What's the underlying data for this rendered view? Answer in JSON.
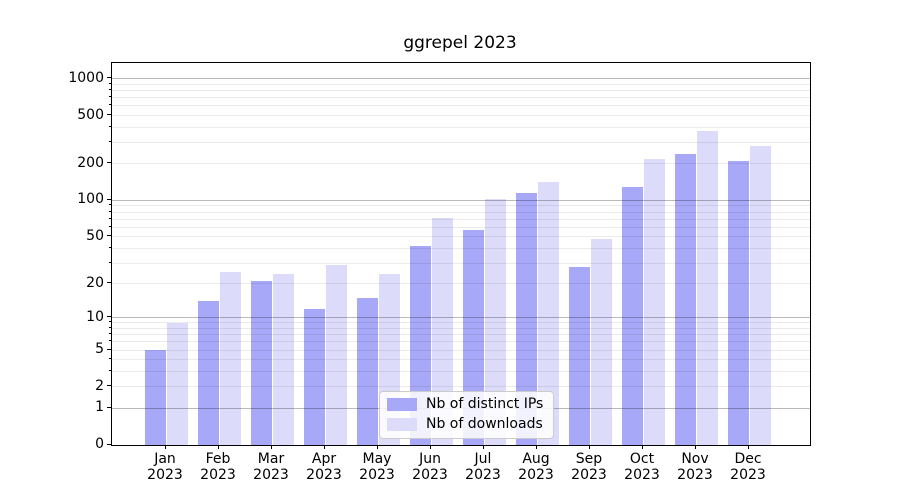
{
  "title": "ggrepel 2023",
  "chart_data": {
    "type": "bar",
    "title": "ggrepel 2023",
    "categories": [
      "Jan",
      "Feb",
      "Mar",
      "Apr",
      "May",
      "Jun",
      "Jul",
      "Aug",
      "Sep",
      "Oct",
      "Nov",
      "Dec"
    ],
    "category_year": "2023",
    "series": [
      {
        "name": "Nb of distinct IPs",
        "color": "#a8a8f8",
        "values": [
          5,
          14,
          21,
          12,
          15,
          42,
          57,
          115,
          28,
          130,
          240,
          210
        ]
      },
      {
        "name": "Nb of downloads",
        "color": "#dcdcfa",
        "values": [
          9,
          25,
          24,
          29,
          24,
          72,
          102,
          142,
          48,
          220,
          370,
          280
        ]
      }
    ],
    "xlabel": "",
    "ylabel": "",
    "y_scale": "log1p",
    "ylim": [
      0,
      1350
    ],
    "y_ticks_labeled": [
      0,
      1,
      2,
      5,
      10,
      20,
      50,
      100,
      200,
      500,
      1000
    ],
    "y_gridlines_major": [
      1,
      10,
      100,
      1000
    ],
    "y_gridlines_minor": [
      2,
      3,
      4,
      5,
      6,
      7,
      8,
      9,
      20,
      30,
      40,
      50,
      60,
      70,
      80,
      90,
      200,
      300,
      400,
      500,
      600,
      700,
      800,
      900
    ],
    "grid": true,
    "legend_position": "lower center"
  }
}
